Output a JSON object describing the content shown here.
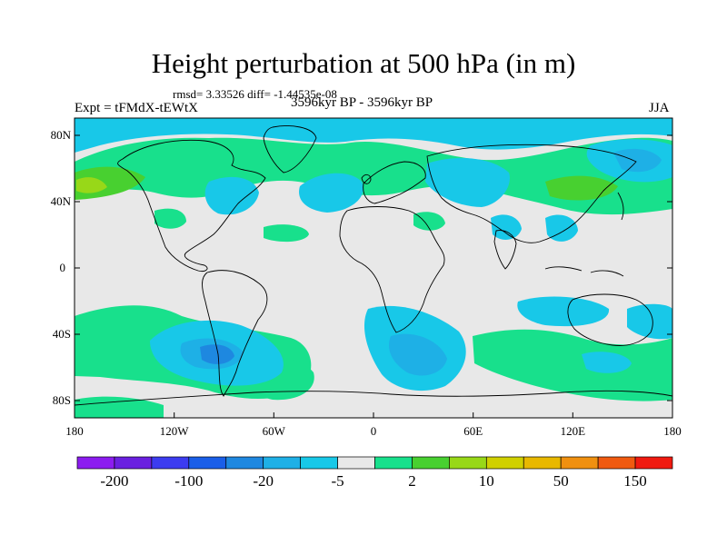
{
  "title": "Height perturbation at 500 hPa (in m)",
  "stats": "rmsd= 3.33526 diff= -1.44535e-08",
  "expt": "Expt = tFMdX-tEWtX",
  "period": "3596kyr BP - 3596kyr BP",
  "season": "JJA",
  "lat_labels": [
    "80N",
    "40N",
    "0",
    "40S",
    "80S"
  ],
  "lon_labels": [
    "180",
    "120W",
    "60W",
    "0",
    "60E",
    "120E",
    "180"
  ],
  "colorbar": {
    "colors": [
      "#8c1cf0",
      "#6a20e0",
      "#3c3cf0",
      "#1a5ee8",
      "#1e88e0",
      "#1eb0e6",
      "#18c8e8",
      "#e8e8e8",
      "#18e08c",
      "#48d030",
      "#98d818",
      "#d0d000",
      "#e8b800",
      "#f09010",
      "#f05a10",
      "#f01a10"
    ],
    "labels": [
      "-200",
      "-100",
      "-20",
      "-5",
      "2",
      "10",
      "50",
      "150"
    ]
  },
  "legend_colors": {
    "neutral": "#e8e8e8",
    "blue_light": "#18c8e8",
    "blue_mid": "#1eb0e6",
    "blue_dark": "#1e88e0",
    "green": "#18e08c",
    "green_dark": "#48d030"
  }
}
